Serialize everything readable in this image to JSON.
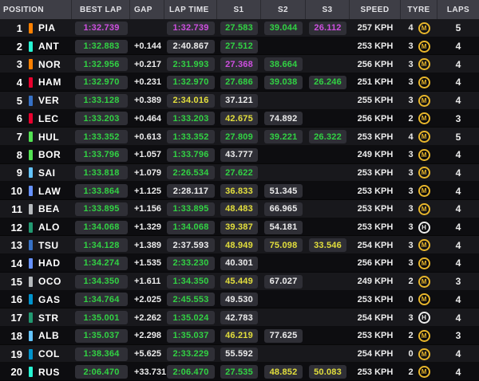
{
  "colors": {
    "purple": "#CE4FE0",
    "green": "#31D243",
    "yellow": "#E3DF3C",
    "white": "#ECECEC"
  },
  "compound_colors": {
    "M": "#E8B62B",
    "H": "#ECECEC"
  },
  "header": {
    "columns": [
      "POSITION",
      "BEST LAP",
      "GAP",
      "LAP TIME",
      "S1",
      "S2",
      "S3",
      "SPEED",
      "TYRE",
      "LAPS"
    ]
  },
  "rows": [
    {
      "pos": "1",
      "team_color": "#FF8000",
      "driver": "PIA",
      "best": {
        "t": "1:32.739",
        "c": "purple"
      },
      "gap": "",
      "lap": {
        "t": "1:32.739",
        "c": "purple"
      },
      "s1": {
        "t": "27.583",
        "c": "green"
      },
      "s2": {
        "t": "39.044",
        "c": "green"
      },
      "s3": {
        "t": "26.112",
        "c": "purple"
      },
      "speed": "257 KPH",
      "tyre_age": "4",
      "compound": "M",
      "laps": "5"
    },
    {
      "pos": "2",
      "team_color": "#27F4D2",
      "driver": "ANT",
      "best": {
        "t": "1:32.883",
        "c": "green"
      },
      "gap": "+0.144",
      "lap": {
        "t": "2:40.867",
        "c": "white"
      },
      "s1": {
        "t": "27.512",
        "c": "green"
      },
      "s2": null,
      "s3": null,
      "speed": "253 KPH",
      "tyre_age": "3",
      "compound": "M",
      "laps": "4"
    },
    {
      "pos": "3",
      "team_color": "#FF8000",
      "driver": "NOR",
      "best": {
        "t": "1:32.956",
        "c": "green"
      },
      "gap": "+0.217",
      "lap": {
        "t": "2:31.993",
        "c": "green"
      },
      "s1": {
        "t": "27.368",
        "c": "purple"
      },
      "s2": {
        "t": "38.664",
        "c": "green"
      },
      "s3": null,
      "speed": "256 KPH",
      "tyre_age": "3",
      "compound": "M",
      "laps": "4"
    },
    {
      "pos": "4",
      "team_color": "#E8002D",
      "driver": "HAM",
      "best": {
        "t": "1:32.970",
        "c": "green"
      },
      "gap": "+0.231",
      "lap": {
        "t": "1:32.970",
        "c": "green"
      },
      "s1": {
        "t": "27.686",
        "c": "green"
      },
      "s2": {
        "t": "39.038",
        "c": "green"
      },
      "s3": {
        "t": "26.246",
        "c": "green"
      },
      "speed": "251 KPH",
      "tyre_age": "3",
      "compound": "M",
      "laps": "4"
    },
    {
      "pos": "5",
      "team_color": "#3671C6",
      "driver": "VER",
      "best": {
        "t": "1:33.128",
        "c": "green"
      },
      "gap": "+0.389",
      "lap": {
        "t": "2:34.016",
        "c": "yellow"
      },
      "s1": {
        "t": "37.121",
        "c": "white"
      },
      "s2": null,
      "s3": null,
      "speed": "255 KPH",
      "tyre_age": "3",
      "compound": "M",
      "laps": "4"
    },
    {
      "pos": "6",
      "team_color": "#E8002D",
      "driver": "LEC",
      "best": {
        "t": "1:33.203",
        "c": "green"
      },
      "gap": "+0.464",
      "lap": {
        "t": "1:33.203",
        "c": "green"
      },
      "s1": {
        "t": "42.675",
        "c": "yellow"
      },
      "s2": {
        "t": "74.892",
        "c": "white"
      },
      "s3": null,
      "speed": "256 KPH",
      "tyre_age": "2",
      "compound": "M",
      "laps": "3"
    },
    {
      "pos": "7",
      "team_color": "#52E252",
      "driver": "HUL",
      "best": {
        "t": "1:33.352",
        "c": "green"
      },
      "gap": "+0.613",
      "lap": {
        "t": "1:33.352",
        "c": "green"
      },
      "s1": {
        "t": "27.809",
        "c": "green"
      },
      "s2": {
        "t": "39.221",
        "c": "green"
      },
      "s3": {
        "t": "26.322",
        "c": "green"
      },
      "speed": "253 KPH",
      "tyre_age": "4",
      "compound": "M",
      "laps": "5"
    },
    {
      "pos": "8",
      "team_color": "#52E252",
      "driver": "BOR",
      "best": {
        "t": "1:33.796",
        "c": "green"
      },
      "gap": "+1.057",
      "lap": {
        "t": "1:33.796",
        "c": "green"
      },
      "s1": {
        "t": "43.777",
        "c": "white"
      },
      "s2": null,
      "s3": null,
      "speed": "249 KPH",
      "tyre_age": "3",
      "compound": "M",
      "laps": "4"
    },
    {
      "pos": "9",
      "team_color": "#64C4FF",
      "driver": "SAI",
      "best": {
        "t": "1:33.818",
        "c": "green"
      },
      "gap": "+1.079",
      "lap": {
        "t": "2:26.534",
        "c": "green"
      },
      "s1": {
        "t": "27.622",
        "c": "green"
      },
      "s2": null,
      "s3": null,
      "speed": "253 KPH",
      "tyre_age": "3",
      "compound": "M",
      "laps": "4"
    },
    {
      "pos": "10",
      "team_color": "#6692FF",
      "driver": "LAW",
      "best": {
        "t": "1:33.864",
        "c": "green"
      },
      "gap": "+1.125",
      "lap": {
        "t": "2:28.117",
        "c": "white"
      },
      "s1": {
        "t": "36.833",
        "c": "yellow"
      },
      "s2": {
        "t": "51.345",
        "c": "white"
      },
      "s3": null,
      "speed": "253 KPH",
      "tyre_age": "3",
      "compound": "M",
      "laps": "4"
    },
    {
      "pos": "11",
      "team_color": "#B6BABD",
      "driver": "BEA",
      "best": {
        "t": "1:33.895",
        "c": "green"
      },
      "gap": "+1.156",
      "lap": {
        "t": "1:33.895",
        "c": "green"
      },
      "s1": {
        "t": "48.483",
        "c": "yellow"
      },
      "s2": {
        "t": "66.965",
        "c": "white"
      },
      "s3": null,
      "speed": "253 KPH",
      "tyre_age": "3",
      "compound": "M",
      "laps": "4"
    },
    {
      "pos": "12",
      "team_color": "#229971",
      "driver": "ALO",
      "best": {
        "t": "1:34.068",
        "c": "green"
      },
      "gap": "+1.329",
      "lap": {
        "t": "1:34.068",
        "c": "green"
      },
      "s1": {
        "t": "39.387",
        "c": "yellow"
      },
      "s2": {
        "t": "54.181",
        "c": "white"
      },
      "s3": null,
      "speed": "253 KPH",
      "tyre_age": "3",
      "compound": "H",
      "laps": "4"
    },
    {
      "pos": "13",
      "team_color": "#3671C6",
      "driver": "TSU",
      "best": {
        "t": "1:34.128",
        "c": "green"
      },
      "gap": "+1.389",
      "lap": {
        "t": "2:37.593",
        "c": "white"
      },
      "s1": {
        "t": "48.949",
        "c": "yellow"
      },
      "s2": {
        "t": "75.098",
        "c": "yellow"
      },
      "s3": {
        "t": "33.546",
        "c": "yellow"
      },
      "speed": "254 KPH",
      "tyre_age": "3",
      "compound": "M",
      "laps": "4"
    },
    {
      "pos": "14",
      "team_color": "#6692FF",
      "driver": "HAD",
      "best": {
        "t": "1:34.274",
        "c": "green"
      },
      "gap": "+1.535",
      "lap": {
        "t": "2:33.230",
        "c": "green"
      },
      "s1": {
        "t": "40.301",
        "c": "white"
      },
      "s2": null,
      "s3": null,
      "speed": "256 KPH",
      "tyre_age": "3",
      "compound": "M",
      "laps": "4"
    },
    {
      "pos": "15",
      "team_color": "#B6BABD",
      "driver": "OCO",
      "best": {
        "t": "1:34.350",
        "c": "green"
      },
      "gap": "+1.611",
      "lap": {
        "t": "1:34.350",
        "c": "green"
      },
      "s1": {
        "t": "45.449",
        "c": "yellow"
      },
      "s2": {
        "t": "67.027",
        "c": "white"
      },
      "s3": null,
      "speed": "249 KPH",
      "tyre_age": "2",
      "compound": "M",
      "laps": "3"
    },
    {
      "pos": "16",
      "team_color": "#0093CC",
      "driver": "GAS",
      "best": {
        "t": "1:34.764",
        "c": "green"
      },
      "gap": "+2.025",
      "lap": {
        "t": "2:45.553",
        "c": "green"
      },
      "s1": {
        "t": "49.530",
        "c": "white"
      },
      "s2": null,
      "s3": null,
      "speed": "253 KPH",
      "tyre_age": "0",
      "compound": "M",
      "laps": "4"
    },
    {
      "pos": "17",
      "team_color": "#229971",
      "driver": "STR",
      "best": {
        "t": "1:35.001",
        "c": "green"
      },
      "gap": "+2.262",
      "lap": {
        "t": "1:35.024",
        "c": "green"
      },
      "s1": {
        "t": "42.783",
        "c": "white"
      },
      "s2": null,
      "s3": null,
      "speed": "254 KPH",
      "tyre_age": "3",
      "compound": "H",
      "laps": "4"
    },
    {
      "pos": "18",
      "team_color": "#64C4FF",
      "driver": "ALB",
      "best": {
        "t": "1:35.037",
        "c": "green"
      },
      "gap": "+2.298",
      "lap": {
        "t": "1:35.037",
        "c": "green"
      },
      "s1": {
        "t": "46.219",
        "c": "yellow"
      },
      "s2": {
        "t": "77.625",
        "c": "white"
      },
      "s3": null,
      "speed": "253 KPH",
      "tyre_age": "2",
      "compound": "M",
      "laps": "3"
    },
    {
      "pos": "19",
      "team_color": "#0093CC",
      "driver": "COL",
      "best": {
        "t": "1:38.364",
        "c": "green"
      },
      "gap": "+5.625",
      "lap": {
        "t": "2:33.229",
        "c": "green"
      },
      "s1": {
        "t": "55.592",
        "c": "white"
      },
      "s2": null,
      "s3": null,
      "speed": "254 KPH",
      "tyre_age": "0",
      "compound": "M",
      "laps": "4"
    },
    {
      "pos": "20",
      "team_color": "#27F4D2",
      "driver": "RUS",
      "best": {
        "t": "2:06.470",
        "c": "green"
      },
      "gap": "+33.731",
      "lap": {
        "t": "2:06.470",
        "c": "green"
      },
      "s1": {
        "t": "27.535",
        "c": "green"
      },
      "s2": {
        "t": "48.852",
        "c": "yellow"
      },
      "s3": {
        "t": "50.083",
        "c": "yellow"
      },
      "speed": "253 KPH",
      "tyre_age": "2",
      "compound": "M",
      "laps": "4"
    }
  ]
}
